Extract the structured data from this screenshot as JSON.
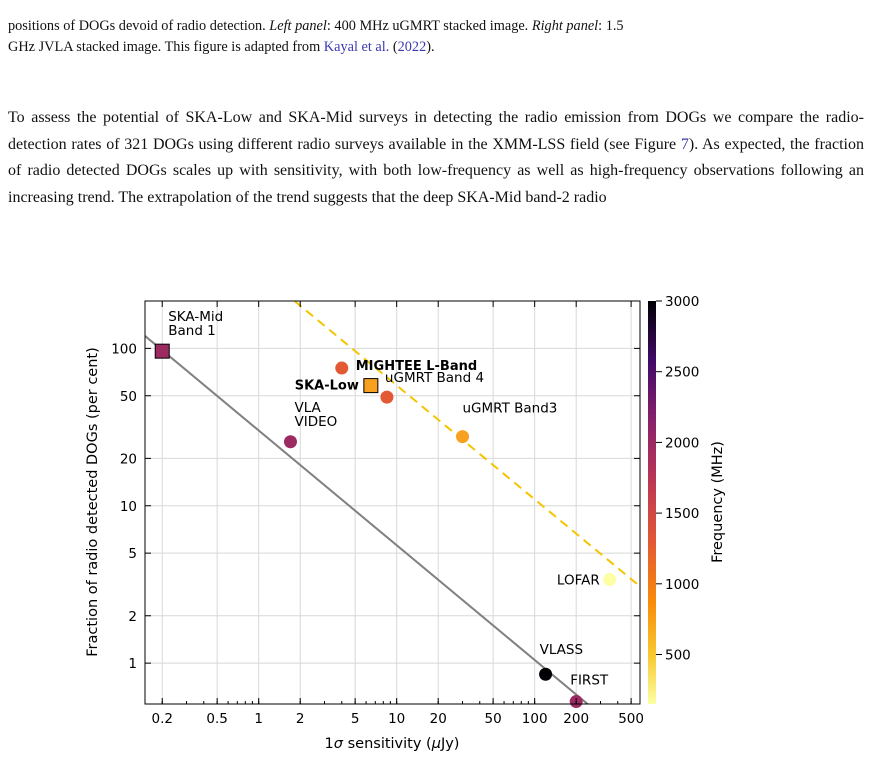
{
  "caption": {
    "line1": "positions of DOGs devoid of radio detection.",
    "left_label": "Left panel",
    "left_text": ": 400 MHz uGMRT stacked image.",
    "right_label": "Right panel",
    "right_text": ": 1.5",
    "line2_start": "GHz JVLA stacked image. This figure is adapted from ",
    "cite_author": "Kayal et al.",
    "cite_open": " (",
    "cite_year": "2022",
    "cite_close": ")."
  },
  "paragraph": {
    "text_before": "To assess the potential of SKA-Low and SKA-Mid surveys in detecting the radio emission from DOGs we compare the radio-detection rates of 321 DOGs using different radio surveys available in the XMM-LSS field (see Figure ",
    "figure_ref": "7",
    "text_after": ").  As expected, the fraction of radio detected DOGs scales up with sensitivity, with both low-frequency as well as high-frequency observations following an increasing trend.  The extrapolation of the trend suggests that the deep SKA-Mid band-2 radio"
  },
  "chart_data": {
    "type": "scatter",
    "xlabel_prefix": "1",
    "xlabel_sigma": "σ",
    "xlabel_text": " sensitivity (",
    "xlabel_mu": "μ",
    "xlabel_unit": "Jy)",
    "ylabel": "Fraction of radio detected DOGs (per cent)",
    "colorbar_label": "Frequency (MHz)",
    "x_scale": "log",
    "y_scale": "log",
    "xlim": [
      0.15,
      580
    ],
    "ylim": [
      0.55,
      200
    ],
    "x_ticks": [
      0.2,
      0.5,
      1,
      2,
      5,
      10,
      20,
      50,
      100,
      200,
      500
    ],
    "x_tick_labels": [
      "0.2",
      "0.5",
      "1",
      "2",
      "5",
      "10",
      "20",
      "50",
      "100",
      "200",
      "500"
    ],
    "y_ticks": [
      1,
      2,
      5,
      10,
      20,
      50,
      100
    ],
    "y_tick_labels": [
      "1",
      "2",
      "5",
      "10",
      "20",
      "50",
      "100"
    ],
    "colorbar_ticks": [
      500,
      1000,
      1500,
      2000,
      2500,
      3000
    ],
    "colorbar_tick_labels": [
      "500",
      "1000",
      "1500",
      "2000",
      "2500",
      "3000"
    ],
    "colorbar_range": [
      150,
      3000
    ],
    "grid": true,
    "points": [
      {
        "label": "SKA-Mid",
        "label2": "Band 1",
        "x": 0.2,
        "y": 96,
        "freq": 1250,
        "marker": "square"
      },
      {
        "label": "MIGHTEE L-Band",
        "x": 4,
        "y": 75,
        "freq": 700,
        "marker": "circle",
        "bold": true
      },
      {
        "label": "SKA-Low",
        "x": 6.5,
        "y": 58,
        "freq": 200,
        "marker": "square",
        "bold": true
      },
      {
        "label": "uGMRT Band 4",
        "x": 8.5,
        "y": 49,
        "freq": 650,
        "marker": "circle"
      },
      {
        "label": "uGMRT Band3",
        "x": 30,
        "y": 27.5,
        "freq": 400,
        "marker": "circle"
      },
      {
        "label": "VLA",
        "label2": "VIDEO",
        "x": 1.7,
        "y": 25.5,
        "freq": 1400,
        "marker": "circle"
      },
      {
        "label": "LOFAR",
        "x": 350,
        "y": 3.4,
        "freq": 150,
        "marker": "circle"
      },
      {
        "label": "VLASS",
        "x": 120,
        "y": 0.85,
        "freq": 3000,
        "marker": "circle"
      },
      {
        "label": "FIRST",
        "x": 200,
        "y": 0.57,
        "freq": 1400,
        "marker": "circle"
      }
    ],
    "fit_lines": [
      {
        "style": "solid",
        "color": "#808080",
        "x": [
          0.15,
          300
        ],
        "y": [
          120,
          0.47
        ]
      },
      {
        "style": "dashed",
        "color": "#f5c400",
        "x": [
          1.5,
          600
        ],
        "y": [
          230,
          3.0
        ]
      }
    ]
  }
}
